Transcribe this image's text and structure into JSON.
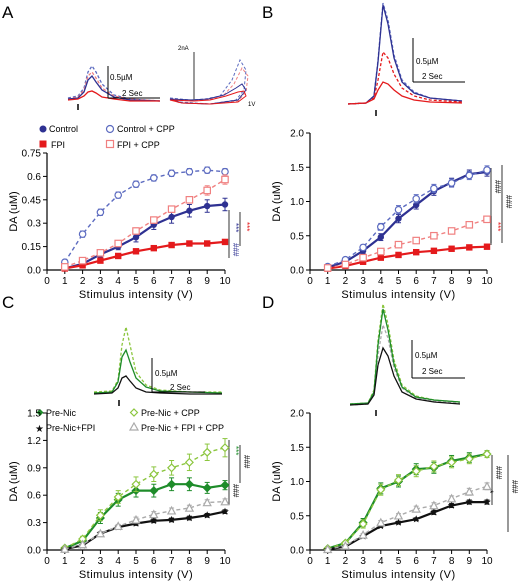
{
  "colors": {
    "control": "#2e3192",
    "control_cpp": "#5c6bc0",
    "fpi": "#e41a1c",
    "fpi_cpp": "#f08080",
    "green_dark": "#1e8c2a",
    "green_light": "#8cc63f",
    "black": "#111111",
    "gray": "#aaaaaa"
  },
  "panels": {
    "A": {
      "letter": "A",
      "scale_conc": "0.5µM",
      "scale_time": "2 Sec",
      "scale_current": "2nA",
      "scale_voltage": "1V",
      "legend": [
        "Control",
        "Control + CPP",
        "FPI",
        "FPI + CPP"
      ],
      "sig": {
        "blue": "***",
        "red": "***",
        "hash": "###"
      }
    },
    "B": {
      "letter": "B",
      "scale_conc": "0.5µM",
      "scale_time": "2 Sec",
      "sig": {
        "red": "***",
        "hash1": "###",
        "hash2": "###"
      }
    },
    "C": {
      "letter": "C",
      "scale_conc": "0.5µM",
      "scale_time": "2 Sec",
      "legend": [
        "Pre-Nic",
        "Pre-Nic + CPP",
        "Pre-Nic+FPI",
        "Pre-Nic + FPI + CPP"
      ],
      "sig": {
        "green": "***",
        "hash1": "###",
        "hash2": "###"
      }
    },
    "D": {
      "letter": "D",
      "scale_conc": "0.5µM",
      "scale_time": "2 Sec",
      "sig": {
        "star": "*",
        "hash1": "###",
        "hash2": "###"
      }
    }
  },
  "chart_data": [
    {
      "panel": "A",
      "type": "line",
      "xlabel": "Stimulus intensity (V)",
      "ylabel": "DA (uM)",
      "xlim": [
        0,
        10
      ],
      "ylim": [
        0,
        0.75
      ],
      "xticks": [
        0,
        1,
        2,
        3,
        4,
        5,
        6,
        7,
        8,
        9,
        10
      ],
      "yticks": [
        "0.0",
        "0.15",
        "0.3",
        "0.45",
        "0.6",
        "0.75"
      ],
      "x": [
        1,
        2,
        3,
        4,
        5,
        6,
        7,
        8,
        9,
        10
      ],
      "series": [
        {
          "name": "Control",
          "color_key": "control",
          "marker": "circle-filled",
          "dashed": false,
          "values": [
            0.01,
            0.04,
            0.1,
            0.15,
            0.21,
            0.29,
            0.34,
            0.38,
            0.41,
            0.42
          ],
          "err": [
            0.005,
            0.01,
            0.02,
            0.02,
            0.03,
            0.03,
            0.04,
            0.04,
            0.04,
            0.04
          ]
        },
        {
          "name": "Control + CPP",
          "color_key": "control_cpp",
          "marker": "circle-open",
          "dashed": true,
          "values": [
            0.05,
            0.23,
            0.37,
            0.48,
            0.55,
            0.59,
            0.62,
            0.63,
            0.64,
            0.63
          ],
          "err": [
            0.01,
            0.02,
            0.02,
            0.02,
            0.02,
            0.02,
            0.02,
            0.02,
            0.02,
            0.02
          ]
        },
        {
          "name": "FPI",
          "color_key": "fpi",
          "marker": "square-filled",
          "dashed": false,
          "values": [
            0.01,
            0.03,
            0.06,
            0.09,
            0.12,
            0.14,
            0.16,
            0.17,
            0.17,
            0.18
          ],
          "err": [
            0.005,
            0.005,
            0.01,
            0.01,
            0.01,
            0.01,
            0.01,
            0.01,
            0.01,
            0.01
          ]
        },
        {
          "name": "FPI + CPP",
          "color_key": "fpi_cpp",
          "marker": "square-open",
          "dashed": true,
          "values": [
            0.02,
            0.06,
            0.11,
            0.17,
            0.25,
            0.32,
            0.39,
            0.45,
            0.51,
            0.58
          ],
          "err": [
            0.005,
            0.01,
            0.01,
            0.01,
            0.02,
            0.02,
            0.02,
            0.02,
            0.03,
            0.03
          ]
        }
      ]
    },
    {
      "panel": "B",
      "type": "line",
      "xlabel": "Stimulus intensity (V)",
      "ylabel": "DA (uM)",
      "xlim": [
        0,
        10
      ],
      "ylim": [
        0,
        2.0
      ],
      "xticks": [
        0,
        1,
        2,
        3,
        4,
        5,
        6,
        7,
        8,
        9,
        10
      ],
      "yticks": [
        "0.0",
        "0.5",
        "1.0",
        "1.5",
        "2.0"
      ],
      "x": [
        1,
        2,
        3,
        4,
        5,
        6,
        7,
        8,
        9,
        10
      ],
      "series": [
        {
          "name": "Control",
          "color_key": "control",
          "marker": "circle-filled",
          "dashed": false,
          "values": [
            0.04,
            0.12,
            0.28,
            0.48,
            0.75,
            0.95,
            1.15,
            1.28,
            1.4,
            1.43
          ],
          "err": [
            0.01,
            0.02,
            0.04,
            0.05,
            0.06,
            0.06,
            0.06,
            0.06,
            0.06,
            0.06
          ]
        },
        {
          "name": "Control + CPP",
          "color_key": "control_cpp",
          "marker": "circle-open",
          "dashed": true,
          "values": [
            0.05,
            0.15,
            0.33,
            0.63,
            0.88,
            1.04,
            1.19,
            1.27,
            1.38,
            1.46
          ],
          "err": [
            0.01,
            0.02,
            0.04,
            0.05,
            0.06,
            0.06,
            0.06,
            0.06,
            0.06,
            0.06
          ]
        },
        {
          "name": "FPI",
          "color_key": "fpi",
          "marker": "square-filled",
          "dashed": false,
          "values": [
            0.02,
            0.06,
            0.12,
            0.18,
            0.22,
            0.26,
            0.28,
            0.31,
            0.33,
            0.34
          ],
          "err": [
            0.005,
            0.01,
            0.01,
            0.01,
            0.02,
            0.02,
            0.02,
            0.02,
            0.02,
            0.02
          ]
        },
        {
          "name": "FPI + CPP",
          "color_key": "fpi_cpp",
          "marker": "square-open",
          "dashed": true,
          "values": [
            0.03,
            0.08,
            0.18,
            0.27,
            0.37,
            0.43,
            0.5,
            0.57,
            0.66,
            0.74
          ],
          "err": [
            0.005,
            0.01,
            0.02,
            0.02,
            0.03,
            0.03,
            0.03,
            0.03,
            0.03,
            0.03
          ]
        }
      ]
    },
    {
      "panel": "C",
      "type": "line",
      "xlabel": "Stimulus intensity (V)",
      "ylabel": "DA (uM)",
      "xlim": [
        0,
        10
      ],
      "ylim": [
        0,
        1.5
      ],
      "xticks": [
        0,
        1,
        2,
        3,
        4,
        5,
        6,
        7,
        8,
        9,
        10
      ],
      "yticks": [
        "0.0",
        "0.3",
        "0.6",
        "0.9",
        "1.2",
        "1.5"
      ],
      "x": [
        1,
        2,
        3,
        4,
        5,
        6,
        7,
        8,
        9,
        10
      ],
      "series": [
        {
          "name": "Pre-Nic",
          "color_key": "green_dark",
          "marker": "diamond-filled",
          "dashed": false,
          "values": [
            0.02,
            0.1,
            0.35,
            0.55,
            0.65,
            0.65,
            0.72,
            0.72,
            0.68,
            0.71
          ],
          "err": [
            0.01,
            0.03,
            0.06,
            0.07,
            0.07,
            0.07,
            0.07,
            0.07,
            0.06,
            0.05
          ]
        },
        {
          "name": "Pre-Nic + CPP",
          "color_key": "green_light",
          "marker": "diamond-open",
          "dashed": true,
          "values": [
            0.02,
            0.12,
            0.38,
            0.58,
            0.72,
            0.83,
            0.9,
            0.96,
            1.07,
            1.12
          ],
          "err": [
            0.01,
            0.03,
            0.06,
            0.07,
            0.08,
            0.08,
            0.08,
            0.09,
            0.09,
            0.1
          ]
        },
        {
          "name": "Pre-Nic+FPI",
          "color_key": "black",
          "marker": "star",
          "dashed": false,
          "values": [
            0.01,
            0.05,
            0.18,
            0.25,
            0.29,
            0.32,
            0.33,
            0.35,
            0.38,
            0.42
          ],
          "err": [
            0.005,
            0.01,
            0.02,
            0.02,
            0.02,
            0.02,
            0.02,
            0.02,
            0.02,
            0.02
          ]
        },
        {
          "name": "Pre-Nic + FPI + CPP",
          "color_key": "gray",
          "marker": "triangle-open",
          "dashed": true,
          "values": [
            0.01,
            0.06,
            0.18,
            0.26,
            0.33,
            0.39,
            0.43,
            0.46,
            0.52,
            0.53
          ],
          "err": [
            0.005,
            0.01,
            0.02,
            0.02,
            0.03,
            0.03,
            0.03,
            0.03,
            0.03,
            0.03
          ]
        }
      ]
    },
    {
      "panel": "D",
      "type": "line",
      "xlabel": "Stimulus intensity (V)",
      "ylabel": "DA (uM)",
      "xlim": [
        0,
        10
      ],
      "ylim": [
        0,
        2.0
      ],
      "xticks": [
        0,
        1,
        2,
        3,
        4,
        5,
        6,
        7,
        8,
        9,
        10
      ],
      "yticks": [
        "0.0",
        "0.5",
        "1.0",
        "1.5",
        "2.0"
      ],
      "x": [
        1,
        2,
        3,
        4,
        5,
        6,
        7,
        8,
        9,
        10
      ],
      "series": [
        {
          "name": "Pre-Nic",
          "color_key": "green_dark",
          "marker": "diamond-filled",
          "dashed": false,
          "values": [
            0.02,
            0.1,
            0.4,
            0.9,
            1.0,
            1.18,
            1.2,
            1.3,
            1.35,
            1.4
          ],
          "err": [
            0.01,
            0.02,
            0.06,
            0.08,
            0.08,
            0.08,
            0.08,
            0.08,
            0.07,
            0.05
          ]
        },
        {
          "name": "Pre-Nic + CPP",
          "color_key": "green_light",
          "marker": "diamond-open",
          "dashed": true,
          "values": [
            0.02,
            0.1,
            0.38,
            0.88,
            1.02,
            1.15,
            1.22,
            1.28,
            1.33,
            1.4
          ],
          "err": [
            0.01,
            0.02,
            0.06,
            0.08,
            0.08,
            0.08,
            0.08,
            0.08,
            0.07,
            0.05
          ]
        },
        {
          "name": "Pre-Nic+FPI",
          "color_key": "black",
          "marker": "star",
          "dashed": false,
          "values": [
            0.01,
            0.05,
            0.2,
            0.35,
            0.4,
            0.45,
            0.55,
            0.65,
            0.7,
            0.7
          ],
          "err": [
            0.005,
            0.01,
            0.02,
            0.02,
            0.02,
            0.02,
            0.03,
            0.03,
            0.03,
            0.03
          ]
        },
        {
          "name": "Pre-Nic + FPI + CPP",
          "color_key": "gray",
          "marker": "triangle-open",
          "dashed": true,
          "values": [
            0.01,
            0.06,
            0.22,
            0.4,
            0.5,
            0.6,
            0.65,
            0.75,
            0.85,
            0.93
          ],
          "err": [
            0.005,
            0.01,
            0.02,
            0.03,
            0.03,
            0.04,
            0.04,
            0.04,
            0.05,
            0.05
          ]
        }
      ]
    }
  ]
}
